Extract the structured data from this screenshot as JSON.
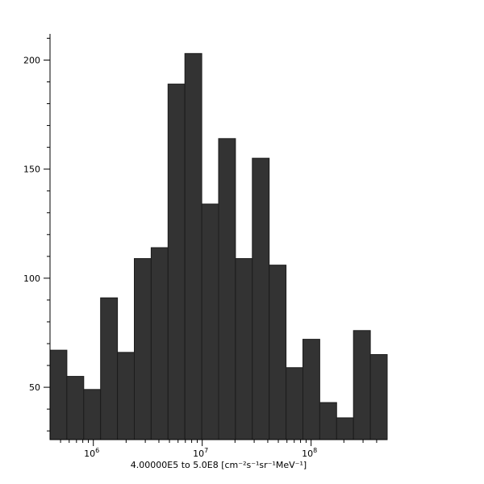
{
  "chart_data": {
    "type": "bar",
    "subtype": "histogram",
    "title": "",
    "xlabel": "4.00000E5 to 5.0E8 [cm⁻²s⁻¹sr⁻¹MeV⁻¹]",
    "ylabel": "",
    "x_scale": "log",
    "xlim": [
      400000,
      500000000
    ],
    "ylim": [
      26,
      212
    ],
    "bins": 20,
    "values": [
      67,
      55,
      49,
      91,
      66,
      109,
      114,
      189,
      203,
      134,
      164,
      109,
      155,
      106,
      59,
      72,
      43,
      36,
      76,
      65
    ],
    "y_ticks": [
      50,
      100,
      150,
      200
    ],
    "y_minor_step": 10,
    "x_ticks": [
      {
        "value": 1000000,
        "base": "10",
        "exp": "6"
      },
      {
        "value": 10000000,
        "base": "10",
        "exp": "7"
      },
      {
        "value": 100000000,
        "base": "10",
        "exp": "8"
      }
    ],
    "grid": false,
    "legend_position": "none",
    "colors": {
      "bar_fill": "#333333",
      "bar_stroke": "#1c1c1c",
      "axis": "#000000",
      "background": "#ffffff"
    }
  }
}
